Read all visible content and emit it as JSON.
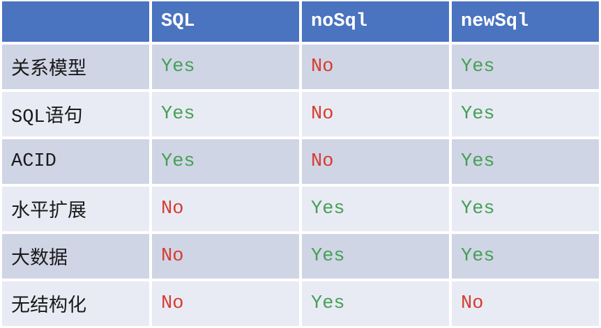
{
  "chart_data": {
    "type": "table",
    "columns": [
      "",
      "SQL",
      "noSql",
      "newSql"
    ],
    "rows": [
      {
        "label": "关系模型",
        "values": [
          "Yes",
          "No",
          "Yes"
        ]
      },
      {
        "label": "SQL语句",
        "values": [
          "Yes",
          "No",
          "Yes"
        ]
      },
      {
        "label": "ACID",
        "values": [
          "Yes",
          "No",
          "Yes"
        ]
      },
      {
        "label": "水平扩展",
        "values": [
          "No",
          "Yes",
          "Yes"
        ]
      },
      {
        "label": "大数据",
        "values": [
          "No",
          "Yes",
          "Yes"
        ]
      },
      {
        "label": "无结构化",
        "values": [
          "No",
          "Yes",
          "No"
        ]
      }
    ]
  },
  "colors": {
    "header_bg": "#4A73C0",
    "header_text": "#FFFFFF",
    "row_dark": "#D0D5E5",
    "row_light": "#E9EBF4",
    "label_text": "#1A1A1A",
    "yes_green": "#46A055",
    "no_red": "#D53C2F"
  }
}
